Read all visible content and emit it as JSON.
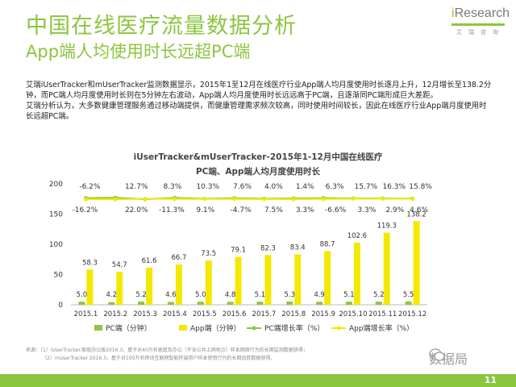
{
  "header": {
    "title": "中国在线医疗流量数据分析",
    "subtitle": "App端人均使用时长远超PC端",
    "logo_text_i": "i",
    "logo_text_rest": "Research",
    "logo_cn": "艾瑞咨询"
  },
  "body": {
    "para1": "艾瑞iUserTracker和mUserTracker监测数据显示，2015年1至12月在线医疗行业App端人均月度使用时长逐月上升，12月增长至138.2分钟，而PC端人均月度使用时长则在5分钟左右波动，App端人均月度使用时长远远高于PC端，且逐渐同PC端形成巨大差距。",
    "para2": "艾瑞分析认为，大多数健康管理服务通过移动端提供，而健康管理需求频次较高，同时使用时间较长，因此在线医疗行业App端月度使用时长远超PC端。"
  },
  "chart_data": {
    "type": "bar",
    "title_line1": "iUserTracker&mUserTracker-2015年1-12月中国在线医疗",
    "title_line2": "PC端、App端人均月度使用时长",
    "categories": [
      "2015.1",
      "2015.2",
      "2015.3",
      "2015.4",
      "2015.5",
      "2015.6",
      "2015.7",
      "2015.8",
      "2015.9",
      "2015.10",
      "2015.11",
      "2015.12"
    ],
    "ylim": [
      0,
      200
    ],
    "yticks": [
      0,
      50,
      100,
      150,
      200
    ],
    "series": [
      {
        "name": "PC端（分钟）",
        "kind": "bar",
        "color": "#8cc63f",
        "values": [
          5.0,
          4.2,
          5.2,
          4.6,
          5.0,
          4.8,
          5.1,
          5.3,
          4.9,
          5.1,
          5.2,
          5.5
        ],
        "labels": [
          "5.0",
          "4.2",
          "5.2",
          "4.6",
          "5.0",
          "4.8",
          "5.1",
          "5.3",
          "4.9",
          "5.1",
          "5.2",
          "5.5"
        ]
      },
      {
        "name": "App端（分钟）",
        "kind": "bar",
        "color": "#f5e800",
        "values": [
          58.3,
          54.7,
          61.6,
          66.7,
          73.5,
          79.1,
          82.3,
          83.4,
          88.7,
          102.6,
          119.3,
          138.2
        ],
        "labels": [
          "58.3",
          "54.7",
          "61.6",
          "66.7",
          "73.5",
          "79.1",
          "82.3",
          "83.4",
          "88.7",
          "102.6",
          "119.3",
          "138.2"
        ]
      },
      {
        "name": "PC端增长率（%）",
        "kind": "line",
        "color": "#8cc63f",
        "values": [
          -6.2,
          -16.2,
          22.0,
          -11.3,
          9.1,
          -4.7,
          7.5,
          3.3,
          -6.6,
          3.3,
          2.9,
          4.6
        ],
        "labels": [
          "-6.2%",
          "-16.2%",
          "22.0%",
          "-11.3%",
          "9.1%",
          "-4.7%",
          "7.5%",
          "3.3%",
          "-6.6%",
          "3.3%",
          "2.9%",
          "4.6%"
        ]
      },
      {
        "name": "App端增长率（%）",
        "kind": "line",
        "color": "#f5e800",
        "values": [
          -6.2,
          -6.2,
          12.7,
          8.3,
          10.3,
          7.6,
          4.0,
          1.4,
          6.3,
          15.7,
          16.3,
          15.8
        ],
        "labels": [
          "-6.2%",
          "-6.2%",
          "12.7%",
          "8.3%",
          "10.3%",
          "7.6%",
          "4.0%",
          "1.4%",
          "6.3%",
          "15.7%",
          "16.3%",
          "15.8%"
        ]
      }
    ],
    "top_row_labels": [
      "-6.2%",
      "12.7%",
      "8.3%",
      "10.3%",
      "7.6%",
      "4.0%",
      "1.4%",
      "6.3%",
      "15.7%",
      "16.3%",
      "15.8%"
    ],
    "bottom_row_labels": [
      "-16.2%",
      "22.0%",
      "-11.3%",
      "9.1%",
      "-4.7%",
      "7.5%",
      "3.3%",
      "-6.6%",
      "3.3%",
      "2.9%",
      "4.6%"
    ],
    "legend": [
      "PC端（分钟）",
      "App端（分钟）",
      "PC端增长率（%）",
      "App端增长率（%）"
    ],
    "legend_placement": "bottom"
  },
  "source": {
    "line1": "来源：（1）iUserTracker.家庭办公版2016.3，基于对40万名家庭及办公（不含公共上网地点）样本网络行为的长期监测数据获得；",
    "line2": "（2）mUserTracker 2016.3，基于对100万名移动互联网智能终端用户样本使用行为的长期追踪数据获得。"
  },
  "wechat": "数据局",
  "page_number": "11"
}
